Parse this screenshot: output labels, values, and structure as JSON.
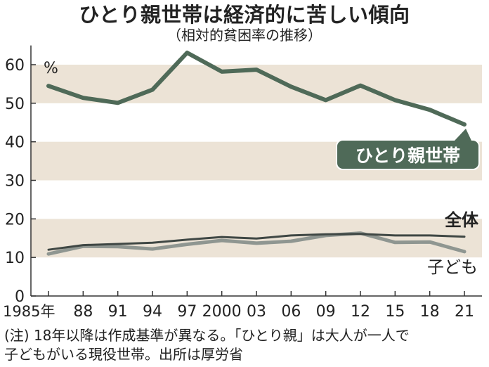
{
  "title": "ひとり親世帯は経済的に苦しい傾向",
  "subtitle": "（相対的貧困率の推移）",
  "note": {
    "line1": "(注) 18年以降は作成基準が異なる。「ひとり親」は大人が一人で",
    "line2": "子どもがいる現役世帯。出所は厚労省"
  },
  "colors": {
    "single_parent": "#4f6a58",
    "overall": "#3f4744",
    "children": "#8f9691",
    "band": "#ece3d6",
    "axis": "#333333"
  },
  "chart_data": {
    "type": "line",
    "title": "ひとり親世帯は経済的に苦しい傾向",
    "subtitle": "（相対的貧困率の推移）",
    "unit_label": "%",
    "x_tick_labels": [
      "1985年",
      "88",
      "91",
      "94",
      "97",
      "2000",
      "03",
      "06",
      "09",
      "12",
      "15",
      "18",
      "21"
    ],
    "x": [
      1985,
      1988,
      1991,
      1994,
      1997,
      2000,
      2003,
      2006,
      2009,
      2012,
      2015,
      2018,
      2021
    ],
    "y_ticks": [
      0,
      10,
      20,
      30,
      40,
      50,
      60
    ],
    "ylim": [
      0,
      65
    ],
    "grid": "alternating horizontal bands",
    "series": [
      {
        "name": "ひとり親世帯",
        "values": [
          54.5,
          51.4,
          50.1,
          53.5,
          63.1,
          58.2,
          58.7,
          54.3,
          50.8,
          54.6,
          50.8,
          48.3,
          44.5
        ]
      },
      {
        "name": "全体",
        "values": [
          12.0,
          13.2,
          13.5,
          13.8,
          14.6,
          15.3,
          14.9,
          15.7,
          16.0,
          16.1,
          15.7,
          15.7,
          15.4
        ]
      },
      {
        "name": "子ども",
        "values": [
          10.9,
          12.9,
          12.8,
          12.2,
          13.4,
          14.4,
          13.7,
          14.2,
          15.7,
          16.3,
          13.9,
          14.0,
          11.5
        ]
      }
    ]
  }
}
